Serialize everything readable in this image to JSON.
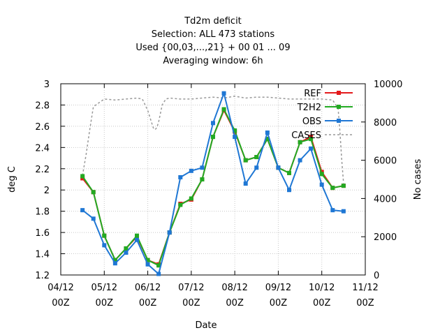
{
  "chart_data": {
    "type": "line",
    "title_lines": [
      "Td2m deficit",
      "Selection: ALL    473 stations",
      "Used {00,03,...,21} + 00 01 ... 09",
      "Averaging window:  6h"
    ],
    "xlabel": "Date",
    "ylabel": "deg C",
    "y2label": "No cases",
    "x_ticks": [
      {
        "top": "04/12",
        "bottom": "00Z"
      },
      {
        "top": "05/12",
        "bottom": "00Z"
      },
      {
        "top": "06/12",
        "bottom": "00Z"
      },
      {
        "top": "07/12",
        "bottom": "00Z"
      },
      {
        "top": "08/12",
        "bottom": "00Z"
      },
      {
        "top": "09/12",
        "bottom": "00Z"
      },
      {
        "top": "10/12",
        "bottom": "00Z"
      },
      {
        "top": "11/12",
        "bottom": "00Z"
      }
    ],
    "xlim_hours": [
      0,
      168
    ],
    "ylim": [
      1.2,
      3.0
    ],
    "y_ticks": [
      "1.2",
      "1.4",
      "1.6",
      "1.8",
      "2",
      "2.2",
      "2.4",
      "2.6",
      "2.8",
      "3"
    ],
    "y2lim": [
      0,
      10000
    ],
    "y2_ticks": [
      "0",
      "2000",
      "4000",
      "6000",
      "8000",
      "10000"
    ],
    "grid": true,
    "legend_position": "top-right",
    "colors": {
      "REF": "#e41a1c",
      "T2H2": "#22aa22",
      "OBS": "#1f77d4",
      "CASES": "#999999"
    },
    "series": [
      {
        "name": "REF",
        "x_hours": [
          12,
          18,
          24,
          30,
          36,
          42,
          48,
          54,
          60,
          66,
          72,
          78,
          84,
          90,
          96,
          102,
          108,
          114,
          120,
          126,
          132,
          138,
          144,
          150,
          156
        ],
        "values": [
          2.11,
          1.98,
          1.57,
          1.34,
          1.45,
          1.56,
          1.34,
          1.3,
          1.6,
          1.87,
          1.91,
          2.1,
          2.5,
          2.75,
          2.55,
          2.28,
          2.31,
          2.48,
          2.21,
          2.16,
          2.45,
          2.5,
          2.17,
          2.02,
          2.04
        ]
      },
      {
        "name": "T2H2",
        "x_hours": [
          12,
          18,
          24,
          30,
          36,
          42,
          48,
          54,
          60,
          66,
          72,
          78,
          84,
          90,
          96,
          102,
          108,
          114,
          120,
          126,
          132,
          138,
          144,
          150,
          156
        ],
        "values": [
          2.13,
          1.98,
          1.57,
          1.34,
          1.45,
          1.57,
          1.34,
          1.29,
          1.6,
          1.86,
          1.92,
          2.1,
          2.5,
          2.76,
          2.56,
          2.28,
          2.31,
          2.48,
          2.21,
          2.16,
          2.45,
          2.48,
          2.15,
          2.02,
          2.04
        ]
      },
      {
        "name": "OBS",
        "x_hours": [
          12,
          18,
          24,
          30,
          36,
          42,
          48,
          54,
          60,
          66,
          72,
          78,
          84,
          90,
          96,
          102,
          108,
          114,
          120,
          126,
          132,
          138,
          144,
          150,
          156
        ],
        "values": [
          1.81,
          1.73,
          1.48,
          1.31,
          1.41,
          1.53,
          1.3,
          1.21,
          1.6,
          2.12,
          2.18,
          2.21,
          2.63,
          2.91,
          2.5,
          2.06,
          2.21,
          2.54,
          2.21,
          2.0,
          2.28,
          2.39,
          2.05,
          1.81,
          1.8
        ]
      },
      {
        "name": "CASES",
        "axis": "y2",
        "x_hours": [
          12,
          14,
          16,
          18,
          21,
          24,
          30,
          36,
          42,
          45,
          48,
          51,
          52,
          53,
          54,
          56,
          58,
          60,
          66,
          72,
          78,
          84,
          90,
          96,
          102,
          108,
          114,
          120,
          126,
          132,
          138,
          144,
          150,
          153,
          154,
          155,
          156
        ],
        "values": [
          5200,
          6300,
          7600,
          8800,
          9000,
          9200,
          9150,
          9200,
          9250,
          9200,
          8600,
          7700,
          7600,
          7700,
          8000,
          8900,
          9200,
          9250,
          9200,
          9200,
          9250,
          9300,
          9250,
          9350,
          9250,
          9300,
          9300,
          9250,
          9200,
          9200,
          9200,
          9200,
          9150,
          8700,
          7500,
          6000,
          4800
        ]
      }
    ]
  }
}
